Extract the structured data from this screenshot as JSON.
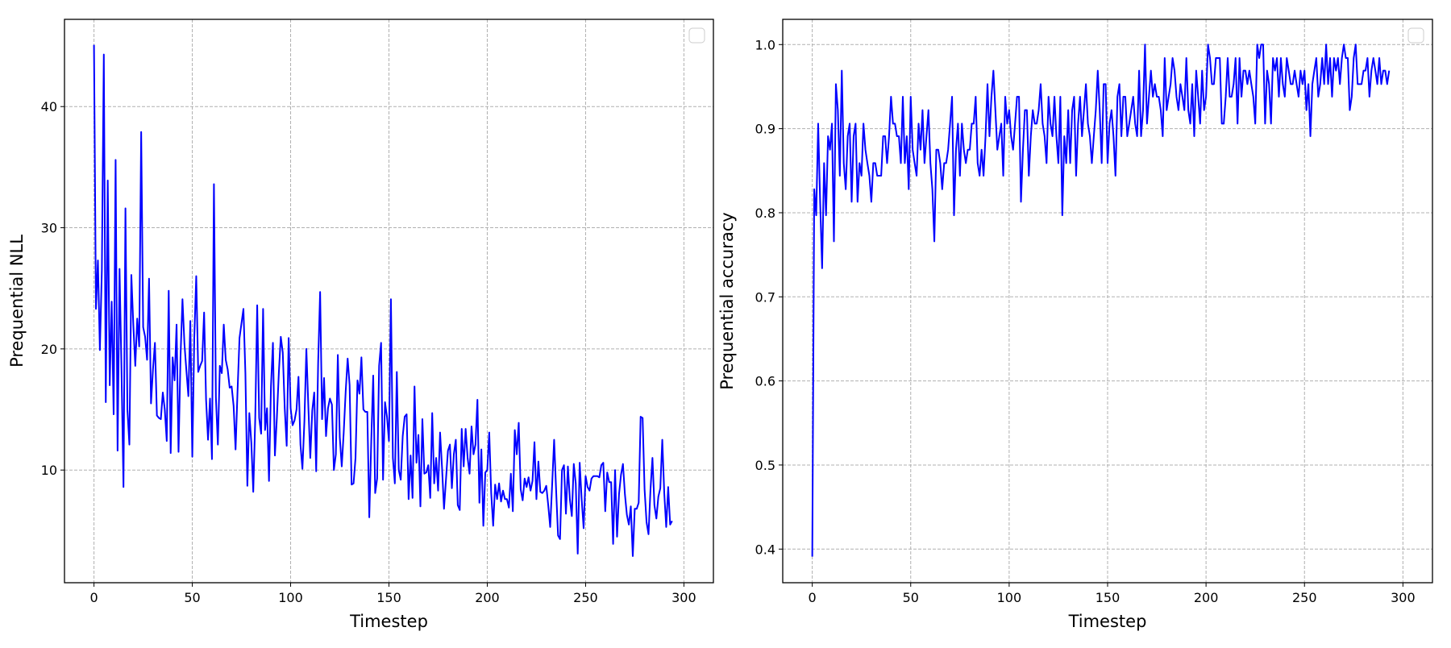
{
  "chart_data": [
    {
      "type": "line",
      "title": "",
      "xlabel": "Timestep",
      "ylabel": "Prequential NLL",
      "xlim": [
        -15,
        315
      ],
      "ylim": [
        0.7,
        47.2
      ],
      "xticks": [
        0,
        50,
        100,
        150,
        200,
        250,
        300
      ],
      "yticks": [
        10,
        20,
        30,
        40
      ],
      "grid": true,
      "grid_style": "dashed",
      "legend": {
        "position": "upper right",
        "entries": []
      },
      "series": [
        {
          "name": "NLL",
          "color": "#0000ff",
          "x_start": 0,
          "x_step": 1,
          "values": [
            45.1,
            23.3,
            27.3,
            19.9,
            26.5,
            44.3,
            15.6,
            33.9,
            17.0,
            23.9,
            14.6,
            35.6,
            11.6,
            26.6,
            18.2,
            8.6,
            31.6,
            15.0,
            12.1,
            26.1,
            22.0,
            18.6,
            22.5,
            20.2,
            37.9,
            21.8,
            21.0,
            19.1,
            25.8,
            15.5,
            18.3,
            20.5,
            14.5,
            14.3,
            14.2,
            16.4,
            15.0,
            12.4,
            24.8,
            11.4,
            19.3,
            17.4,
            22.0,
            11.5,
            19.3,
            24.1,
            20.4,
            18.2,
            16.1,
            22.3,
            11.1,
            20.9,
            26.0,
            18.1,
            18.6,
            19.0,
            23.0,
            15.8,
            12.5,
            15.9,
            10.9,
            33.6,
            16.0,
            12.1,
            18.6,
            18.0,
            22.0,
            19.1,
            18.3,
            16.8,
            16.9,
            15.3,
            11.7,
            16.5,
            20.9,
            22.1,
            23.3,
            18.0,
            8.7,
            14.7,
            12.3,
            8.2,
            14.2,
            23.6,
            14.3,
            13.0,
            23.3,
            13.3,
            15.1,
            9.1,
            16.9,
            20.5,
            11.2,
            14.3,
            18.0,
            21.0,
            19.7,
            15.1,
            12.0,
            20.9,
            15.1,
            13.7,
            14.1,
            15.0,
            17.7,
            12.1,
            10.1,
            14.0,
            20.0,
            15.3,
            11.0,
            14.9,
            16.4,
            9.9,
            18.9,
            24.7,
            14.2,
            17.6,
            12.8,
            15.1,
            15.9,
            15.4,
            10.0,
            11.3,
            19.5,
            12.7,
            10.3,
            13.1,
            16.5,
            19.2,
            17.0,
            8.8,
            8.9,
            11.0,
            17.4,
            16.3,
            19.3,
            15.0,
            14.8,
            14.8,
            6.1,
            12.4,
            17.8,
            8.1,
            9.3,
            18.6,
            20.5,
            9.2,
            15.6,
            14.4,
            12.4,
            24.1,
            11.0,
            8.9,
            18.1,
            10.0,
            9.2,
            12.8,
            14.4,
            14.6,
            7.6,
            11.2,
            7.7,
            16.9,
            10.6,
            12.9,
            7.0,
            14.2,
            9.7,
            9.8,
            10.4,
            7.7,
            14.7,
            8.9,
            11.0,
            8.3,
            13.1,
            10.2,
            6.8,
            9.2,
            11.6,
            12.1,
            8.5,
            11.3,
            12.5,
            7.1,
            6.7,
            13.4,
            10.3,
            13.4,
            11.0,
            9.7,
            13.6,
            11.3,
            12.1,
            15.8,
            7.3,
            11.7,
            5.4,
            9.8,
            10.0,
            13.1,
            8.1,
            5.4,
            8.8,
            7.6,
            8.9,
            7.4,
            8.3,
            7.6,
            7.6,
            6.9,
            9.7,
            6.6,
            13.3,
            11.3,
            13.9,
            8.4,
            7.5,
            9.3,
            8.6,
            9.4,
            8.3,
            9.1,
            12.3,
            7.6,
            10.7,
            8.2,
            8.1,
            8.3,
            8.7,
            7.1,
            5.3,
            8.8,
            12.5,
            8.4,
            4.6,
            4.3,
            10.0,
            10.4,
            6.4,
            10.3,
            7.6,
            6.2,
            10.5,
            8.9,
            3.1,
            10.6,
            7.6,
            5.2,
            9.5,
            8.6,
            8.3,
            9.3,
            9.5,
            9.5,
            9.5,
            9.4,
            10.4,
            10.6,
            6.6,
            9.8,
            9.0,
            9.0,
            3.9,
            10.0,
            4.5,
            8.0,
            9.6,
            10.5,
            8.0,
            6.3,
            5.5,
            7.0,
            2.9,
            6.8,
            6.8,
            7.3,
            14.4,
            14.3,
            8.4,
            5.7,
            4.7,
            8.4,
            11.0,
            7.1,
            6.0,
            7.8,
            8.5,
            12.5,
            8.1,
            5.3,
            8.6,
            5.5,
            5.8
          ]
        }
      ]
    },
    {
      "type": "line",
      "title": "",
      "xlabel": "Timestep",
      "ylabel": "Prequential accuracy",
      "xlim": [
        -15,
        315
      ],
      "ylim": [
        0.36,
        1.03
      ],
      "xticks": [
        0,
        50,
        100,
        150,
        200,
        250,
        300
      ],
      "yticks": [
        0.4,
        0.5,
        0.6,
        0.7,
        0.8,
        0.9,
        1.0
      ],
      "grid": true,
      "grid_style": "dashed",
      "legend": {
        "position": "upper right",
        "entries": []
      },
      "series": [
        {
          "name": "Accuracy",
          "color": "#0000ff",
          "x_start": 0,
          "x_step": 1,
          "values": [
            0.391,
            0.828,
            0.797,
            0.906,
            0.813,
            0.734,
            0.859,
            0.797,
            0.891,
            0.875,
            0.906,
            0.766,
            0.953,
            0.922,
            0.844,
            0.969,
            0.859,
            0.828,
            0.891,
            0.906,
            0.813,
            0.891,
            0.906,
            0.813,
            0.859,
            0.844,
            0.906,
            0.875,
            0.859,
            0.844,
            0.813,
            0.859,
            0.859,
            0.844,
            0.844,
            0.844,
            0.891,
            0.891,
            0.859,
            0.891,
            0.938,
            0.906,
            0.906,
            0.891,
            0.891,
            0.859,
            0.938,
            0.859,
            0.891,
            0.828,
            0.938,
            0.875,
            0.859,
            0.844,
            0.906,
            0.875,
            0.922,
            0.859,
            0.891,
            0.922,
            0.859,
            0.828,
            0.766,
            0.875,
            0.875,
            0.859,
            0.828,
            0.859,
            0.859,
            0.875,
            0.906,
            0.938,
            0.797,
            0.875,
            0.906,
            0.844,
            0.906,
            0.875,
            0.859,
            0.875,
            0.875,
            0.906,
            0.906,
            0.938,
            0.859,
            0.844,
            0.875,
            0.844,
            0.891,
            0.953,
            0.891,
            0.938,
            0.969,
            0.922,
            0.875,
            0.891,
            0.906,
            0.844,
            0.938,
            0.906,
            0.922,
            0.891,
            0.875,
            0.906,
            0.938,
            0.938,
            0.813,
            0.875,
            0.922,
            0.922,
            0.844,
            0.891,
            0.922,
            0.906,
            0.906,
            0.922,
            0.953,
            0.906,
            0.891,
            0.859,
            0.938,
            0.906,
            0.891,
            0.938,
            0.891,
            0.859,
            0.938,
            0.797,
            0.891,
            0.859,
            0.922,
            0.859,
            0.922,
            0.938,
            0.844,
            0.906,
            0.938,
            0.891,
            0.922,
            0.953,
            0.906,
            0.891,
            0.859,
            0.891,
            0.922,
            0.969,
            0.922,
            0.859,
            0.953,
            0.953,
            0.859,
            0.906,
            0.922,
            0.891,
            0.844,
            0.938,
            0.953,
            0.891,
            0.938,
            0.938,
            0.891,
            0.906,
            0.922,
            0.938,
            0.906,
            0.891,
            0.969,
            0.891,
            0.922,
            1.0,
            0.906,
            0.938,
            0.969,
            0.938,
            0.953,
            0.938,
            0.938,
            0.922,
            0.891,
            0.984,
            0.922,
            0.938,
            0.953,
            0.984,
            0.969,
            0.938,
            0.922,
            0.953,
            0.938,
            0.922,
            0.984,
            0.922,
            0.906,
            0.953,
            0.891,
            0.969,
            0.938,
            0.906,
            0.969,
            0.922,
            0.938,
            1.0,
            0.984,
            0.953,
            0.953,
            0.984,
            0.984,
            0.984,
            0.906,
            0.906,
            0.938,
            0.984,
            0.938,
            0.938,
            0.953,
            0.984,
            0.906,
            0.984,
            0.938,
            0.969,
            0.969,
            0.953,
            0.969,
            0.953,
            0.938,
            0.906,
            1.0,
            0.984,
            1.0,
            1.0,
            0.906,
            0.969,
            0.953,
            0.906,
            0.984,
            0.969,
            0.984,
            0.938,
            0.984,
            0.953,
            0.938,
            0.984,
            0.969,
            0.953,
            0.953,
            0.969,
            0.953,
            0.938,
            0.969,
            0.953,
            0.969,
            0.922,
            0.953,
            0.891,
            0.953,
            0.969,
            0.984,
            0.938,
            0.953,
            0.984,
            0.953,
            1.0,
            0.953,
            0.984,
            0.938,
            0.984,
            0.969,
            0.984,
            0.953,
            0.984,
            1.0,
            0.984,
            0.984,
            0.922,
            0.938,
            0.984,
            1.0,
            0.953,
            0.953,
            0.953,
            0.969,
            0.969,
            0.984,
            0.938,
            0.969,
            0.984,
            0.969,
            0.953,
            0.984,
            0.953,
            0.969,
            0.969,
            0.953,
            0.969
          ]
        }
      ]
    }
  ],
  "panels": [
    {
      "ylabel": "Prequential NLL",
      "xlabel": "Timestep",
      "xtick_labels": [
        "0",
        "50",
        "100",
        "150",
        "200",
        "250",
        "300"
      ],
      "ytick_labels": [
        "10",
        "20",
        "30",
        "40"
      ]
    },
    {
      "ylabel": "Prequential accuracy",
      "xlabel": "Timestep",
      "xtick_labels": [
        "0",
        "50",
        "100",
        "150",
        "200",
        "250",
        "300"
      ],
      "ytick_labels": [
        "0.4",
        "0.5",
        "0.6",
        "0.7",
        "0.8",
        "0.9",
        "1.0"
      ]
    }
  ],
  "colors": {
    "line": "#0000ff",
    "grid": "#b0b0b0",
    "axes": "#000000",
    "legend_border": "#cccccc"
  }
}
